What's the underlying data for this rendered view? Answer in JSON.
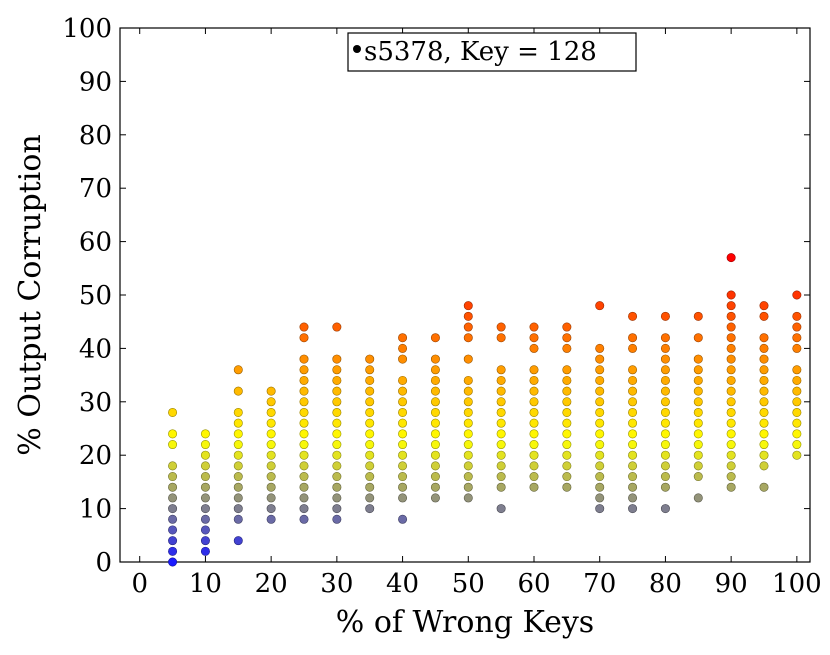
{
  "chart_data": {
    "type": "scatter",
    "xlabel": "% of Wrong Keys",
    "ylabel": "% Output Corruption",
    "xlim": [
      -3,
      102
    ],
    "ylim": [
      0,
      100
    ],
    "xticks": [
      "0",
      "10",
      "20",
      "30",
      "40",
      "50",
      "60",
      "70",
      "80",
      "90",
      "100"
    ],
    "yticks": [
      "0",
      "10",
      "20",
      "30",
      "40",
      "50",
      "60",
      "70",
      "80",
      "90",
      "100"
    ],
    "legend": {
      "label": "s5378, Key = 128",
      "placement": "top-center"
    },
    "grid": false,
    "colormap": {
      "low": "#1a1aff",
      "mid": "#ffff00",
      "high": "#ff0000",
      "vmin": 0,
      "vmax": 57
    },
    "series": [
      {
        "x": 5,
        "y": [
          0,
          2,
          4,
          6,
          8,
          10,
          12,
          14,
          16,
          18,
          22,
          24,
          28
        ]
      },
      {
        "x": 10,
        "y": [
          2,
          4,
          6,
          8,
          10,
          12,
          14,
          16,
          18,
          20,
          22,
          24
        ]
      },
      {
        "x": 15,
        "y": [
          4,
          8,
          10,
          12,
          14,
          16,
          18,
          20,
          22,
          24,
          26,
          28,
          32,
          36
        ]
      },
      {
        "x": 20,
        "y": [
          8,
          10,
          12,
          14,
          16,
          18,
          20,
          22,
          24,
          26,
          28,
          30,
          32
        ]
      },
      {
        "x": 25,
        "y": [
          8,
          10,
          12,
          14,
          16,
          18,
          20,
          22,
          24,
          26,
          28,
          30,
          32,
          34,
          36,
          38,
          42,
          44
        ]
      },
      {
        "x": 30,
        "y": [
          8,
          10,
          12,
          14,
          16,
          18,
          20,
          22,
          24,
          26,
          28,
          30,
          32,
          34,
          36,
          38,
          44
        ]
      },
      {
        "x": 35,
        "y": [
          10,
          12,
          14,
          16,
          18,
          20,
          22,
          24,
          26,
          28,
          30,
          32,
          34,
          36,
          38
        ]
      },
      {
        "x": 40,
        "y": [
          8,
          12,
          14,
          16,
          18,
          20,
          22,
          24,
          26,
          28,
          30,
          32,
          34,
          38,
          40,
          42
        ]
      },
      {
        "x": 45,
        "y": [
          12,
          14,
          16,
          18,
          20,
          22,
          24,
          26,
          28,
          30,
          32,
          34,
          36,
          38,
          42
        ]
      },
      {
        "x": 50,
        "y": [
          12,
          14,
          16,
          18,
          20,
          22,
          24,
          26,
          28,
          30,
          32,
          34,
          38,
          42,
          44,
          46,
          48
        ]
      },
      {
        "x": 55,
        "y": [
          10,
          14,
          16,
          18,
          20,
          22,
          24,
          26,
          28,
          30,
          32,
          34,
          36,
          42,
          44
        ]
      },
      {
        "x": 60,
        "y": [
          14,
          16,
          18,
          20,
          22,
          24,
          26,
          28,
          30,
          32,
          34,
          36,
          40,
          42,
          44
        ]
      },
      {
        "x": 65,
        "y": [
          14,
          16,
          18,
          20,
          22,
          24,
          26,
          28,
          30,
          32,
          34,
          36,
          40,
          42,
          44
        ]
      },
      {
        "x": 70,
        "y": [
          10,
          12,
          14,
          16,
          18,
          20,
          22,
          24,
          26,
          28,
          30,
          32,
          34,
          36,
          38,
          40,
          48
        ]
      },
      {
        "x": 75,
        "y": [
          10,
          12,
          14,
          16,
          18,
          20,
          22,
          24,
          26,
          28,
          30,
          32,
          34,
          36,
          40,
          42,
          46
        ]
      },
      {
        "x": 80,
        "y": [
          10,
          14,
          16,
          18,
          20,
          22,
          24,
          26,
          28,
          30,
          32,
          34,
          36,
          38,
          40,
          42,
          46
        ]
      },
      {
        "x": 85,
        "y": [
          12,
          16,
          18,
          20,
          22,
          24,
          26,
          28,
          30,
          32,
          34,
          36,
          38,
          42,
          46
        ]
      },
      {
        "x": 90,
        "y": [
          14,
          16,
          18,
          20,
          22,
          24,
          26,
          28,
          30,
          32,
          34,
          36,
          38,
          40,
          42,
          44,
          46,
          48,
          50,
          57
        ]
      },
      {
        "x": 95,
        "y": [
          14,
          18,
          20,
          22,
          24,
          26,
          28,
          30,
          32,
          34,
          36,
          38,
          40,
          42,
          46,
          48
        ]
      },
      {
        "x": 100,
        "y": [
          20,
          22,
          24,
          26,
          28,
          30,
          32,
          34,
          36,
          40,
          42,
          44,
          46,
          50
        ]
      }
    ]
  }
}
